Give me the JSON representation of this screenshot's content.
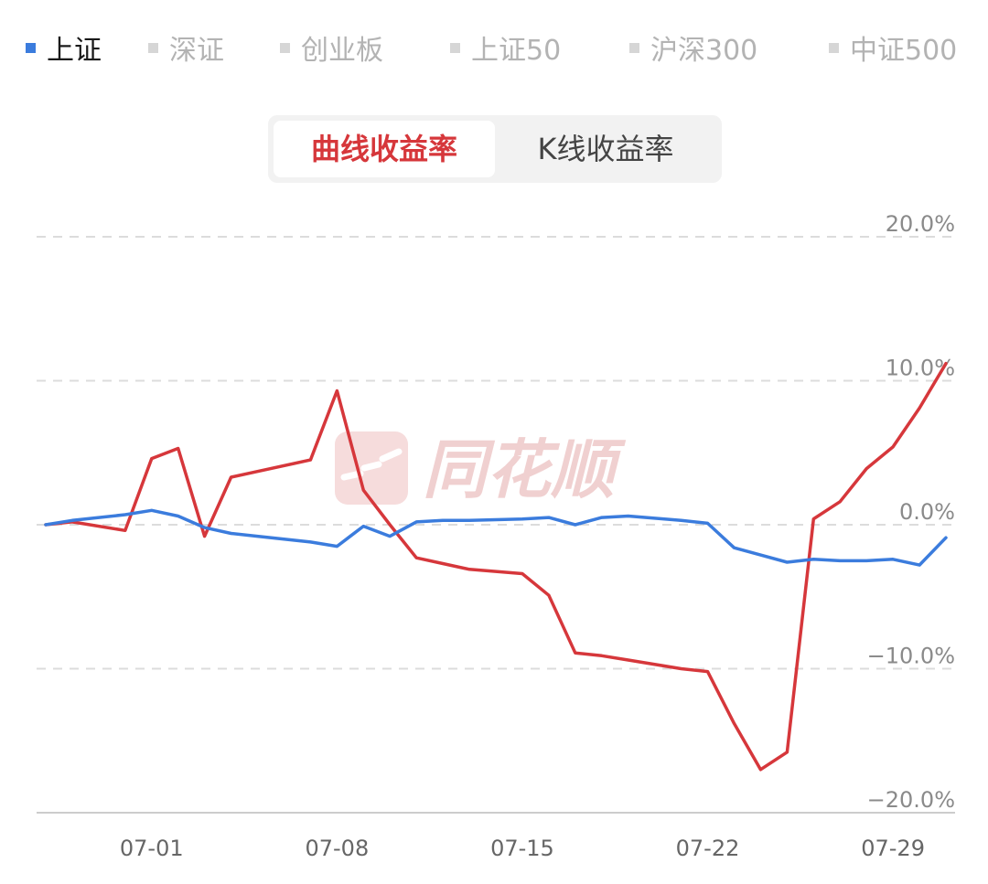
{
  "index_tabs": [
    {
      "label": "上证",
      "active": true
    },
    {
      "label": "深证",
      "active": false
    },
    {
      "label": "创业板",
      "active": false
    },
    {
      "label": "上证50",
      "active": false
    },
    {
      "label": "沪深300",
      "active": false
    },
    {
      "label": "中证500",
      "active": false
    }
  ],
  "mode_toggle": {
    "options": [
      "曲线收益率",
      "K线收益率"
    ],
    "selected_index": 0
  },
  "watermark": {
    "text": "同花顺"
  },
  "colors": {
    "portfolio_line": "#d6373b",
    "index_line": "#3b7cdd",
    "active_marker": "#3b7cdd",
    "inactive_marker": "#d6d6d6",
    "grid": "#dcdcdc",
    "axis": "#cccccc"
  },
  "chart_data": {
    "type": "line",
    "ylim": [
      -20,
      20
    ],
    "y_ticks": [
      20,
      10,
      0,
      -10,
      -20
    ],
    "y_tick_labels": [
      "20.0%",
      "10.0%",
      "0.0%",
      "−10.0%",
      "−20.0%"
    ],
    "y_axis_position": "right",
    "grid": true,
    "grid_style": "dashed-horizontal",
    "x_ticks": [
      "07-01",
      "07-08",
      "07-15",
      "07-22",
      "07-29"
    ],
    "x_tick_dates": [
      "2024-07-01",
      "2024-07-08",
      "2024-07-15",
      "2024-07-22",
      "2024-07-29"
    ],
    "series": [
      {
        "color": "#d6373b",
        "x": [
          "2024-06-27",
          "2024-06-28",
          "2024-06-30",
          "2024-07-01",
          "2024-07-02",
          "2024-07-03",
          "2024-07-04",
          "2024-07-05",
          "2024-07-07",
          "2024-07-08",
          "2024-07-09",
          "2024-07-10",
          "2024-07-11",
          "2024-07-12",
          "2024-07-13",
          "2024-07-15",
          "2024-07-16",
          "2024-07-17",
          "2024-07-18",
          "2024-07-19",
          "2024-07-21",
          "2024-07-22",
          "2024-07-23",
          "2024-07-24",
          "2024-07-25",
          "2024-07-26",
          "2024-07-27",
          "2024-07-28",
          "2024-07-29",
          "2024-07-30",
          "2024-07-31"
        ],
        "values": [
          0.0,
          0.2,
          -0.4,
          4.6,
          5.3,
          -0.8,
          3.3,
          3.7,
          4.5,
          9.3,
          2.4,
          0.0,
          -2.3,
          -2.7,
          -3.1,
          -3.4,
          -4.9,
          -8.9,
          -9.1,
          -9.4,
          -10.0,
          -10.2,
          -13.8,
          -17.0,
          -15.8,
          0.4,
          1.6,
          3.9,
          5.4,
          8.1,
          11.2
        ]
      },
      {
        "color": "#3b7cdd",
        "x": [
          "2024-06-27",
          "2024-06-28",
          "2024-06-30",
          "2024-07-01",
          "2024-07-02",
          "2024-07-03",
          "2024-07-04",
          "2024-07-05",
          "2024-07-07",
          "2024-07-08",
          "2024-07-09",
          "2024-07-10",
          "2024-07-11",
          "2024-07-12",
          "2024-07-13",
          "2024-07-15",
          "2024-07-16",
          "2024-07-17",
          "2024-07-18",
          "2024-07-19",
          "2024-07-21",
          "2024-07-22",
          "2024-07-23",
          "2024-07-24",
          "2024-07-25",
          "2024-07-26",
          "2024-07-27",
          "2024-07-28",
          "2024-07-29",
          "2024-07-30",
          "2024-07-31"
        ],
        "values": [
          0.0,
          0.3,
          0.7,
          1.0,
          0.6,
          -0.2,
          -0.6,
          -0.8,
          -1.2,
          -1.5,
          -0.1,
          -0.8,
          0.2,
          0.3,
          0.3,
          0.4,
          0.5,
          0.0,
          0.5,
          0.6,
          0.3,
          0.1,
          -1.6,
          -2.1,
          -2.6,
          -2.4,
          -2.5,
          -2.5,
          -2.4,
          -2.8,
          -0.9
        ]
      }
    ]
  }
}
